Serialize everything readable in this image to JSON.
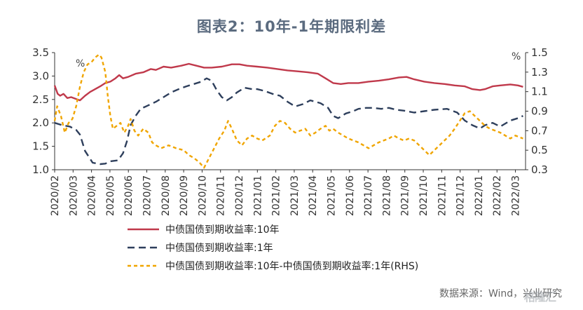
{
  "title": "图表2：10年-1年期限利差",
  "source": "数据来源：Wind，兴业研究",
  "watermark": "格隆汇",
  "chart_data": {
    "type": "line",
    "x_ticks": [
      "2020/02",
      "2020/03",
      "2020/04",
      "2020/05",
      "2020/06",
      "2020/07",
      "2020/08",
      "2020/09",
      "2020/10",
      "2020/11",
      "2020/12",
      "2021/01",
      "2021/02",
      "2021/03",
      "2021/04",
      "2021/05",
      "2021/06",
      "2021/07",
      "2021/08",
      "2021/09",
      "2021/10",
      "2021/11",
      "2021/12",
      "2022/01",
      "2022/02",
      "2022/03"
    ],
    "y_left": {
      "unit": "%",
      "min": 1.0,
      "max": 3.5,
      "ticks": [
        "1.0",
        "1.5",
        "2.0",
        "2.5",
        "3.0",
        "3.5"
      ]
    },
    "y_right": {
      "unit": "%",
      "min": 0.3,
      "max": 1.5,
      "ticks": [
        "0.3",
        "0.5",
        "0.7",
        "0.9",
        "1.1",
        "1.3",
        "1.5"
      ]
    },
    "series": [
      {
        "name": "中债国债到期收益率:10年",
        "axis": "left",
        "color": "#c0394b",
        "dash": "solid",
        "points": [
          [
            2020.0,
            2.8
          ],
          [
            2020.12,
            2.62
          ],
          [
            2020.22,
            2.58
          ],
          [
            2020.35,
            2.62
          ],
          [
            2020.5,
            2.53
          ],
          [
            2020.65,
            2.55
          ],
          [
            2020.8,
            2.52
          ],
          [
            2021.0,
            2.48
          ],
          [
            2021.2,
            2.58
          ],
          [
            2021.4,
            2.66
          ],
          [
            2021.6,
            2.72
          ],
          [
            2021.8,
            2.78
          ],
          [
            2022.0,
            2.85
          ],
          [
            2022.2,
            2.88
          ],
          [
            2022.4,
            2.95
          ],
          [
            2022.55,
            3.02
          ],
          [
            2022.7,
            2.95
          ],
          [
            2022.9,
            2.98
          ],
          [
            2023.2,
            3.05
          ],
          [
            2023.5,
            3.08
          ],
          [
            2023.8,
            3.15
          ],
          [
            2024.0,
            3.13
          ],
          [
            2024.3,
            3.2
          ],
          [
            2024.6,
            3.18
          ],
          [
            2025.0,
            3.22
          ],
          [
            2025.3,
            3.26
          ],
          [
            2025.6,
            3.22
          ],
          [
            2025.9,
            3.18
          ],
          [
            2026.2,
            3.18
          ],
          [
            2026.6,
            3.2
          ],
          [
            2027.0,
            3.25
          ],
          [
            2027.3,
            3.25
          ],
          [
            2027.6,
            3.22
          ],
          [
            2028.0,
            3.2
          ],
          [
            2028.4,
            3.18
          ],
          [
            2028.8,
            3.15
          ],
          [
            2029.2,
            3.12
          ],
          [
            2029.6,
            3.1
          ],
          [
            2030.0,
            3.08
          ],
          [
            2030.4,
            3.05
          ],
          [
            2030.7,
            2.95
          ],
          [
            2031.0,
            2.85
          ],
          [
            2031.3,
            2.83
          ],
          [
            2031.6,
            2.85
          ],
          [
            2032.0,
            2.85
          ],
          [
            2032.4,
            2.88
          ],
          [
            2032.8,
            2.9
          ],
          [
            2033.2,
            2.93
          ],
          [
            2033.6,
            2.97
          ],
          [
            2033.9,
            2.98
          ],
          [
            2034.2,
            2.93
          ],
          [
            2034.6,
            2.88
          ],
          [
            2035.0,
            2.85
          ],
          [
            2035.4,
            2.83
          ],
          [
            2035.8,
            2.8
          ],
          [
            2036.2,
            2.78
          ],
          [
            2036.5,
            2.72
          ],
          [
            2036.8,
            2.7
          ],
          [
            2037.0,
            2.72
          ],
          [
            2037.3,
            2.78
          ],
          [
            2037.6,
            2.8
          ],
          [
            2038.0,
            2.82
          ],
          [
            2038.3,
            2.8
          ],
          [
            2038.5,
            2.77
          ]
        ]
      },
      {
        "name": "中债国债到期收益率:1年",
        "axis": "left",
        "color": "#2e3f5c",
        "dash": "10,6",
        "points": [
          [
            2020.0,
            2.0
          ],
          [
            2020.3,
            1.95
          ],
          [
            2020.6,
            1.92
          ],
          [
            2020.85,
            1.85
          ],
          [
            2021.0,
            1.75
          ],
          [
            2021.2,
            1.4
          ],
          [
            2021.5,
            1.15
          ],
          [
            2021.8,
            1.12
          ],
          [
            2022.0,
            1.13
          ],
          [
            2022.2,
            1.18
          ],
          [
            2022.5,
            1.2
          ],
          [
            2022.7,
            1.35
          ],
          [
            2022.85,
            1.6
          ],
          [
            2023.0,
            1.95
          ],
          [
            2023.2,
            2.15
          ],
          [
            2023.4,
            2.3
          ],
          [
            2023.6,
            2.35
          ],
          [
            2023.8,
            2.4
          ],
          [
            2024.0,
            2.45
          ],
          [
            2024.3,
            2.55
          ],
          [
            2024.6,
            2.65
          ],
          [
            2024.9,
            2.72
          ],
          [
            2025.2,
            2.78
          ],
          [
            2025.5,
            2.83
          ],
          [
            2025.8,
            2.88
          ],
          [
            2026.0,
            2.95
          ],
          [
            2026.2,
            2.9
          ],
          [
            2026.4,
            2.7
          ],
          [
            2026.6,
            2.55
          ],
          [
            2026.8,
            2.48
          ],
          [
            2027.0,
            2.55
          ],
          [
            2027.2,
            2.65
          ],
          [
            2027.5,
            2.75
          ],
          [
            2027.8,
            2.72
          ],
          [
            2028.0,
            2.72
          ],
          [
            2028.3,
            2.68
          ],
          [
            2028.6,
            2.62
          ],
          [
            2028.9,
            2.58
          ],
          [
            2029.2,
            2.45
          ],
          [
            2029.5,
            2.35
          ],
          [
            2029.8,
            2.4
          ],
          [
            2030.1,
            2.48
          ],
          [
            2030.5,
            2.42
          ],
          [
            2030.8,
            2.32
          ],
          [
            2031.0,
            2.15
          ],
          [
            2031.2,
            2.1
          ],
          [
            2031.5,
            2.2
          ],
          [
            2031.8,
            2.25
          ],
          [
            2032.0,
            2.3
          ],
          [
            2032.3,
            2.32
          ],
          [
            2032.6,
            2.32
          ],
          [
            2032.9,
            2.3
          ],
          [
            2033.2,
            2.32
          ],
          [
            2033.5,
            2.28
          ],
          [
            2033.8,
            2.26
          ],
          [
            2034.2,
            2.22
          ],
          [
            2034.6,
            2.25
          ],
          [
            2035.0,
            2.28
          ],
          [
            2035.5,
            2.3
          ],
          [
            2035.9,
            2.22
          ],
          [
            2036.2,
            2.05
          ],
          [
            2036.5,
            1.95
          ],
          [
            2036.8,
            1.88
          ],
          [
            2037.0,
            1.95
          ],
          [
            2037.3,
            2.0
          ],
          [
            2037.6,
            1.92
          ],
          [
            2038.0,
            2.05
          ],
          [
            2038.3,
            2.1
          ],
          [
            2038.5,
            2.15
          ]
        ]
      },
      {
        "name": "中债国债到期收益率:10年-中债国债到期收益率:1年(RHS)",
        "axis": "right",
        "color": "#f0a500",
        "dash": "5,4",
        "points": [
          [
            2020.0,
            0.8
          ],
          [
            2020.1,
            0.95
          ],
          [
            2020.25,
            0.85
          ],
          [
            2020.4,
            0.68
          ],
          [
            2020.55,
            0.78
          ],
          [
            2020.7,
            0.82
          ],
          [
            2020.85,
            0.95
          ],
          [
            2021.0,
            1.15
          ],
          [
            2021.15,
            1.3
          ],
          [
            2021.3,
            1.38
          ],
          [
            2021.45,
            1.4
          ],
          [
            2021.6,
            1.45
          ],
          [
            2021.75,
            1.48
          ],
          [
            2021.85,
            1.45
          ],
          [
            2022.0,
            1.3
          ],
          [
            2022.1,
            1.05
          ],
          [
            2022.2,
            0.85
          ],
          [
            2022.3,
            0.72
          ],
          [
            2022.45,
            0.75
          ],
          [
            2022.6,
            0.78
          ],
          [
            2022.75,
            0.68
          ],
          [
            2022.9,
            0.75
          ],
          [
            2023.0,
            0.82
          ],
          [
            2023.15,
            0.7
          ],
          [
            2023.3,
            0.65
          ],
          [
            2023.5,
            0.72
          ],
          [
            2023.7,
            0.68
          ],
          [
            2023.85,
            0.58
          ],
          [
            2024.0,
            0.55
          ],
          [
            2024.2,
            0.52
          ],
          [
            2024.5,
            0.55
          ],
          [
            2024.8,
            0.52
          ],
          [
            2025.1,
            0.5
          ],
          [
            2025.3,
            0.45
          ],
          [
            2025.5,
            0.42
          ],
          [
            2025.7,
            0.38
          ],
          [
            2025.9,
            0.32
          ],
          [
            2026.1,
            0.42
          ],
          [
            2026.3,
            0.52
          ],
          [
            2026.5,
            0.62
          ],
          [
            2026.7,
            0.7
          ],
          [
            2026.85,
            0.8
          ],
          [
            2027.0,
            0.72
          ],
          [
            2027.2,
            0.6
          ],
          [
            2027.4,
            0.55
          ],
          [
            2027.6,
            0.62
          ],
          [
            2027.8,
            0.65
          ],
          [
            2028.0,
            0.62
          ],
          [
            2028.2,
            0.6
          ],
          [
            2028.5,
            0.65
          ],
          [
            2028.7,
            0.75
          ],
          [
            2028.9,
            0.8
          ],
          [
            2029.1,
            0.78
          ],
          [
            2029.3,
            0.72
          ],
          [
            2029.5,
            0.68
          ],
          [
            2029.7,
            0.7
          ],
          [
            2029.9,
            0.72
          ],
          [
            2030.1,
            0.65
          ],
          [
            2030.3,
            0.68
          ],
          [
            2030.5,
            0.72
          ],
          [
            2030.7,
            0.75
          ],
          [
            2030.85,
            0.7
          ],
          [
            2031.0,
            0.72
          ],
          [
            2031.2,
            0.68
          ],
          [
            2031.4,
            0.65
          ],
          [
            2031.6,
            0.62
          ],
          [
            2031.8,
            0.6
          ],
          [
            2032.0,
            0.58
          ],
          [
            2032.2,
            0.55
          ],
          [
            2032.4,
            0.52
          ],
          [
            2032.6,
            0.55
          ],
          [
            2032.8,
            0.58
          ],
          [
            2033.0,
            0.6
          ],
          [
            2033.2,
            0.62
          ],
          [
            2033.4,
            0.65
          ],
          [
            2033.6,
            0.62
          ],
          [
            2033.8,
            0.6
          ],
          [
            2034.0,
            0.62
          ],
          [
            2034.2,
            0.6
          ],
          [
            2034.4,
            0.55
          ],
          [
            2034.6,
            0.5
          ],
          [
            2034.8,
            0.45
          ],
          [
            2035.0,
            0.5
          ],
          [
            2035.2,
            0.55
          ],
          [
            2035.4,
            0.6
          ],
          [
            2035.6,
            0.65
          ],
          [
            2035.8,
            0.72
          ],
          [
            2036.0,
            0.8
          ],
          [
            2036.2,
            0.88
          ],
          [
            2036.4,
            0.9
          ],
          [
            2036.6,
            0.85
          ],
          [
            2036.8,
            0.8
          ],
          [
            2037.0,
            0.75
          ],
          [
            2037.2,
            0.72
          ],
          [
            2037.4,
            0.7
          ],
          [
            2037.6,
            0.68
          ],
          [
            2037.8,
            0.65
          ],
          [
            2038.0,
            0.62
          ],
          [
            2038.2,
            0.65
          ],
          [
            2038.4,
            0.63
          ],
          [
            2038.5,
            0.62
          ]
        ]
      }
    ],
    "grid": false,
    "legend": "bottom"
  }
}
